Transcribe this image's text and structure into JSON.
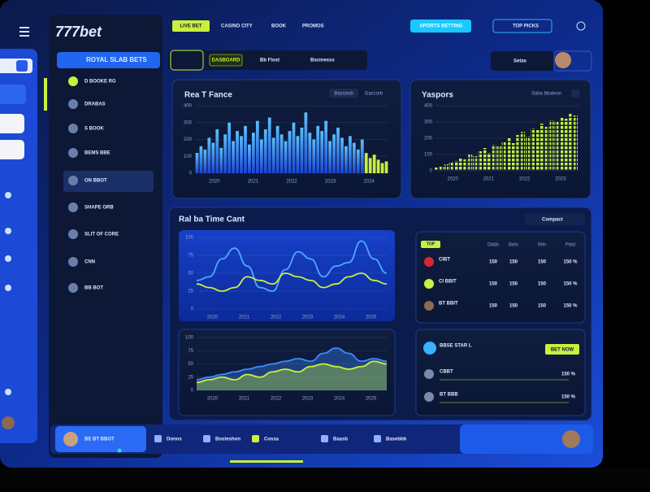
{
  "header": {
    "logo": "777bet",
    "nav": [
      "LIVE BET",
      "CASINO CITY",
      "BOOK",
      "PROMOS"
    ],
    "search": "SPORTS BETTING",
    "button": "TOP PICKS"
  },
  "sidebar": {
    "title": "ROYAL SLAB BETS",
    "items": [
      "D BOOKE RG",
      "DRABAS",
      "S BOOK",
      "BEMS BBE",
      "ON BBOT",
      "SHAPE ORB",
      "SLIT OF CORE",
      "CNN",
      "BB BOT"
    ]
  },
  "toolbar": {
    "tabs": [
      "DASBOARD",
      "Bb Flost",
      "Bscinesss"
    ],
    "account": "Setas"
  },
  "performance": {
    "title": "Rea T Fance",
    "tabs": [
      "Bassbob",
      "Gaccorb"
    ],
    "ylim": [
      0,
      400
    ],
    "yticks": [
      0,
      100,
      200,
      300,
      400
    ],
    "xlabels": [
      "2020",
      "2021",
      "2022",
      "2023",
      "2024"
    ],
    "values": [
      120,
      160,
      140,
      210,
      180,
      260,
      150,
      230,
      300,
      190,
      250,
      220,
      280,
      170,
      240,
      310,
      200,
      260,
      330,
      210,
      280,
      230,
      190,
      250,
      300,
      220,
      270,
      360,
      240,
      200,
      280,
      250,
      310,
      190,
      230,
      270,
      210,
      160,
      220,
      180,
      140,
      200,
      120,
      90,
      110,
      80,
      60,
      70
    ]
  },
  "sports": {
    "title": "Yaspors",
    "legend": "Saba bbateon",
    "ylim": [
      0,
      400
    ],
    "yticks": [
      0,
      100,
      200,
      300,
      400
    ],
    "xlabels": [
      "2020",
      "2021",
      "2022",
      "2023"
    ],
    "values": [
      20,
      30,
      40,
      55,
      60,
      80,
      70,
      100,
      90,
      120,
      140,
      110,
      160,
      150,
      180,
      200,
      170,
      220,
      240,
      210,
      260,
      250,
      290,
      270,
      310,
      300,
      330,
      320,
      350,
      340
    ]
  },
  "live": {
    "title": "Ral ba Time Cant",
    "dropdown": "Compact",
    "line": {
      "ylim": [
        0,
        100
      ],
      "yticks": [
        0,
        25,
        50,
        75,
        100
      ],
      "xlabels": [
        "2020",
        "2021",
        "2022",
        "2023",
        "2024",
        "2025"
      ],
      "series": [
        {
          "color": "#4fa8ff",
          "values": [
            40,
            45,
            70,
            85,
            60,
            30,
            25,
            55,
            80,
            70,
            45,
            60,
            65,
            95,
            70,
            50
          ]
        },
        {
          "color": "#c8f03c",
          "values": [
            35,
            30,
            25,
            30,
            45,
            40,
            35,
            50,
            45,
            40,
            30,
            35,
            45,
            50,
            40,
            35
          ]
        }
      ]
    },
    "area": {
      "ylim": [
        0,
        100
      ],
      "yticks": [
        0,
        25,
        50,
        75,
        100
      ],
      "xlabels": [
        "2020",
        "2021",
        "2022",
        "2023",
        "2024",
        "2025"
      ],
      "series": [
        {
          "color": "#3d8bff",
          "values": [
            20,
            25,
            30,
            35,
            40,
            45,
            50,
            55,
            60,
            55,
            70,
            80,
            70,
            55,
            60,
            55
          ]
        },
        {
          "color": "#c8f03c",
          "values": [
            15,
            20,
            25,
            20,
            30,
            25,
            35,
            40,
            35,
            45,
            50,
            45,
            40,
            45,
            55,
            50
          ]
        }
      ]
    }
  },
  "odds_table": {
    "badge": "TOP",
    "head": [
      "Odds",
      "Bets",
      "Win",
      "Paid"
    ],
    "rows": [
      {
        "name": "CIBT",
        "cols": [
          "150",
          "150",
          "150",
          "150 %"
        ]
      },
      {
        "name": "CI BBIT",
        "cols": [
          "150",
          "150",
          "150",
          "150 %"
        ]
      },
      {
        "name": "BT BBIT",
        "cols": [
          "150",
          "150",
          "150",
          "150 %"
        ]
      }
    ]
  },
  "bet_box": {
    "title": "BBSE STAR L",
    "button": "BET NOW",
    "rows": [
      {
        "name": "CBBT",
        "value": "150 %"
      },
      {
        "name": "BT BBB",
        "value": "150 %"
      }
    ]
  },
  "bottom": {
    "user": "BE BT BBOT",
    "items": [
      "Donos",
      "Bosteshon",
      "Cossa",
      "Baasb",
      "Basebbb"
    ]
  }
}
